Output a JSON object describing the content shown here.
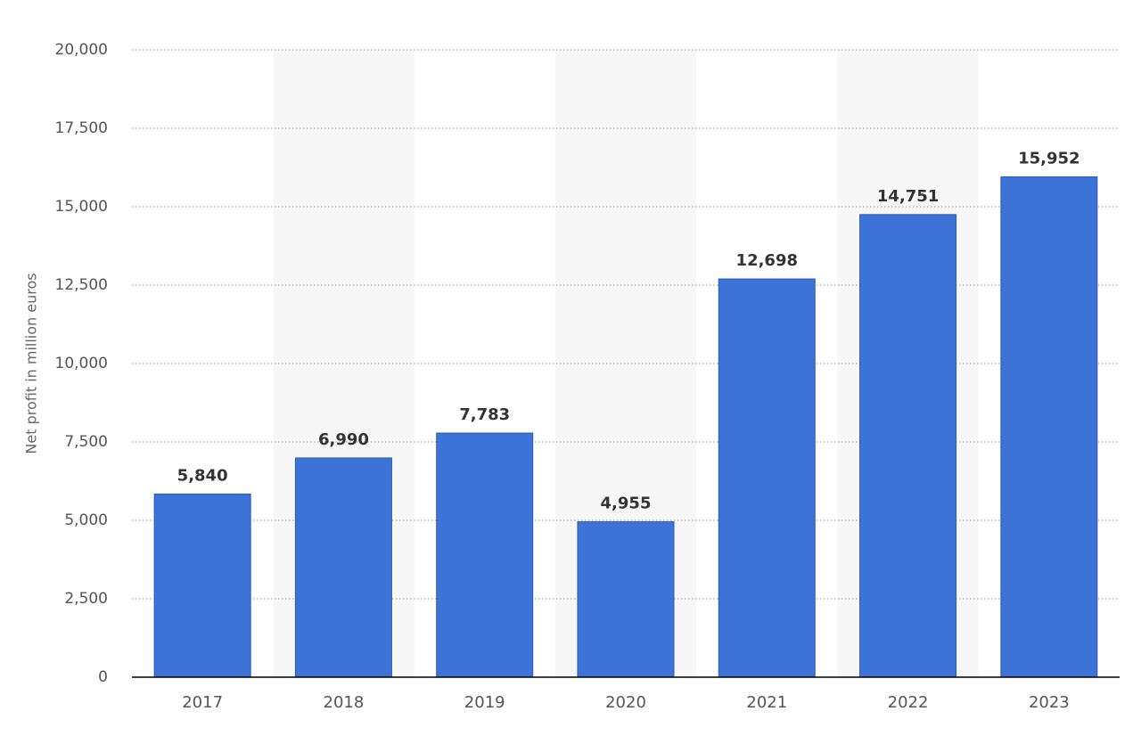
{
  "chart_data": {
    "type": "bar",
    "y_label": "Net profit in million euros",
    "categories": [
      "2017",
      "2018",
      "2019",
      "2020",
      "2021",
      "2022",
      "2023"
    ],
    "values": [
      5840,
      6990,
      7783,
      4955,
      12698,
      14751,
      15952
    ],
    "value_labels": [
      "5,840",
      "6,990",
      "7,783",
      "4,955",
      "12,698",
      "14,751",
      "15,952"
    ],
    "color": "#3d72d7",
    "ylim": [
      0,
      20000
    ],
    "yticks": [
      0,
      {
        "value": 2500,
        "label": "2,500"
      },
      {
        "value": 5000,
        "label": "5,000"
      },
      {
        "value": 7500,
        "label": "7,500"
      },
      {
        "value": 10000,
        "label": "10,000"
      },
      {
        "value": 12500,
        "label": "12,500"
      },
      {
        "value": 15000,
        "label": "15,000"
      },
      {
        "value": 17500,
        "label": "17,500"
      },
      {
        "value": 20000,
        "label": "20,000"
      }
    ],
    "grid": true
  }
}
